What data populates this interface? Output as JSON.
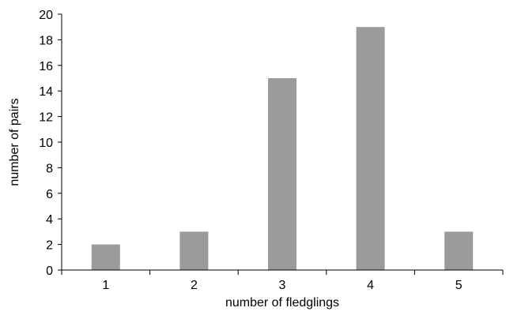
{
  "chart_data": {
    "type": "bar",
    "categories": [
      "1",
      "2",
      "3",
      "4",
      "5"
    ],
    "values": [
      2,
      3,
      15,
      19,
      3
    ],
    "title": "",
    "xlabel": "number of fledglings",
    "ylabel": "number of pairs",
    "ylim": [
      0,
      20
    ],
    "yticks": [
      0,
      2,
      4,
      6,
      8,
      10,
      12,
      14,
      16,
      18,
      20
    ],
    "grid": false,
    "bar_color": "#9b9b9b"
  }
}
